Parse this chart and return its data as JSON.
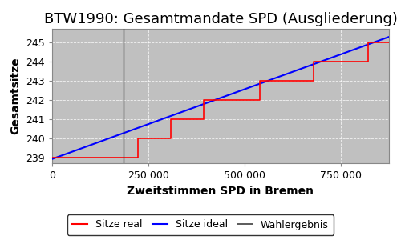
{
  "title": "BTW1990: Gesamtmandate SPD (Ausgliederung)",
  "xlabel": "Zweitstimmen SPD in Bremen",
  "ylabel": "Gesamtsitze",
  "bg_color": "#c0c0c0",
  "fig_color": "#ffffff",
  "xlim": [
    0,
    875000
  ],
  "ylim": [
    238.7,
    245.7
  ],
  "yticks": [
    239,
    240,
    241,
    242,
    243,
    244,
    245
  ],
  "xticks": [
    0,
    250000,
    500000,
    750000
  ],
  "xtick_labels": [
    "0",
    "250.000",
    "500.000",
    "750.000"
  ],
  "wahlergebnis_x": 185000,
  "color_real": "#ff0000",
  "color_ideal": "#0000ff",
  "color_wahlergebnis": "#404040",
  "legend_labels": [
    "Sitze real",
    "Sitze ideal",
    "Wahlergebnis"
  ],
  "title_fontsize": 13,
  "axis_label_fontsize": 10,
  "tick_fontsize": 9,
  "legend_fontsize": 9,
  "real_x": [
    0,
    185000,
    222000,
    222000,
    308000,
    308000,
    393000,
    393000,
    462000,
    462000,
    540000,
    540000,
    615000,
    615000,
    680000,
    680000,
    762000,
    762000,
    820000,
    820000,
    875000
  ],
  "real_y": [
    239,
    239,
    239,
    240,
    240,
    241,
    241,
    242,
    242,
    242,
    242,
    243,
    243,
    243,
    243,
    244,
    244,
    244,
    244,
    245,
    245
  ],
  "ideal_start_y": 238.92,
  "ideal_end_y": 245.28,
  "grid_color": "#ffffff",
  "grid_linestyle": "--",
  "grid_alpha": 0.8
}
